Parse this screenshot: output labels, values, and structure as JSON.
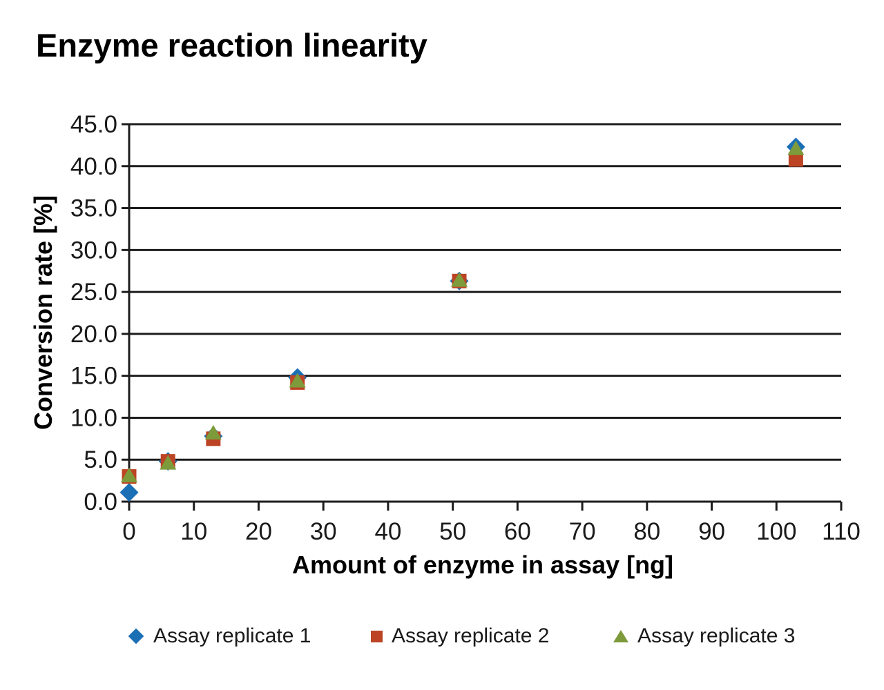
{
  "chart_data": {
    "type": "scatter",
    "title": "Enzyme reaction linearity",
    "xlabel": "Amount of enzyme in assay [ng]",
    "ylabel": "Conversion rate [%]",
    "xlim": [
      0,
      110
    ],
    "ylim": [
      0,
      45
    ],
    "x_tick_values": [
      0,
      10,
      20,
      30,
      40,
      50,
      60,
      70,
      80,
      90,
      100,
      110
    ],
    "x_tick_labels": [
      "0",
      "10",
      "20",
      "30",
      "40",
      "50",
      "60",
      "70",
      "80",
      "90",
      "100",
      "110"
    ],
    "y_tick_values": [
      0,
      5,
      10,
      15,
      20,
      25,
      30,
      35,
      40,
      45
    ],
    "y_tick_labels": [
      "0.0",
      "5.0",
      "10.0",
      "15.0",
      "20.0",
      "25.0",
      "30.0",
      "35.0",
      "40.0",
      "45.0"
    ],
    "grid": "horizontal-only",
    "legend_position": "bottom",
    "axis_color": "#1c1c1c",
    "background": "#ffffff",
    "series": [
      {
        "name": "Assay replicate 1",
        "marker": "diamond",
        "color": "#1b6fb5",
        "x": [
          0,
          6,
          13,
          26,
          51,
          103
        ],
        "y": [
          1.1,
          4.8,
          7.8,
          14.8,
          26.3,
          42.3
        ]
      },
      {
        "name": "Assay replicate 2",
        "marker": "square",
        "color": "#bc4424",
        "x": [
          0,
          6,
          13,
          26,
          51,
          103
        ],
        "y": [
          3.0,
          4.8,
          7.5,
          14.2,
          26.3,
          40.8
        ]
      },
      {
        "name": "Assay replicate 3",
        "marker": "triangle",
        "color": "#7e9b3b",
        "x": [
          0,
          6,
          13,
          26,
          51,
          103
        ],
        "y": [
          3.1,
          4.6,
          8.2,
          14.4,
          26.4,
          42.1
        ]
      }
    ]
  }
}
